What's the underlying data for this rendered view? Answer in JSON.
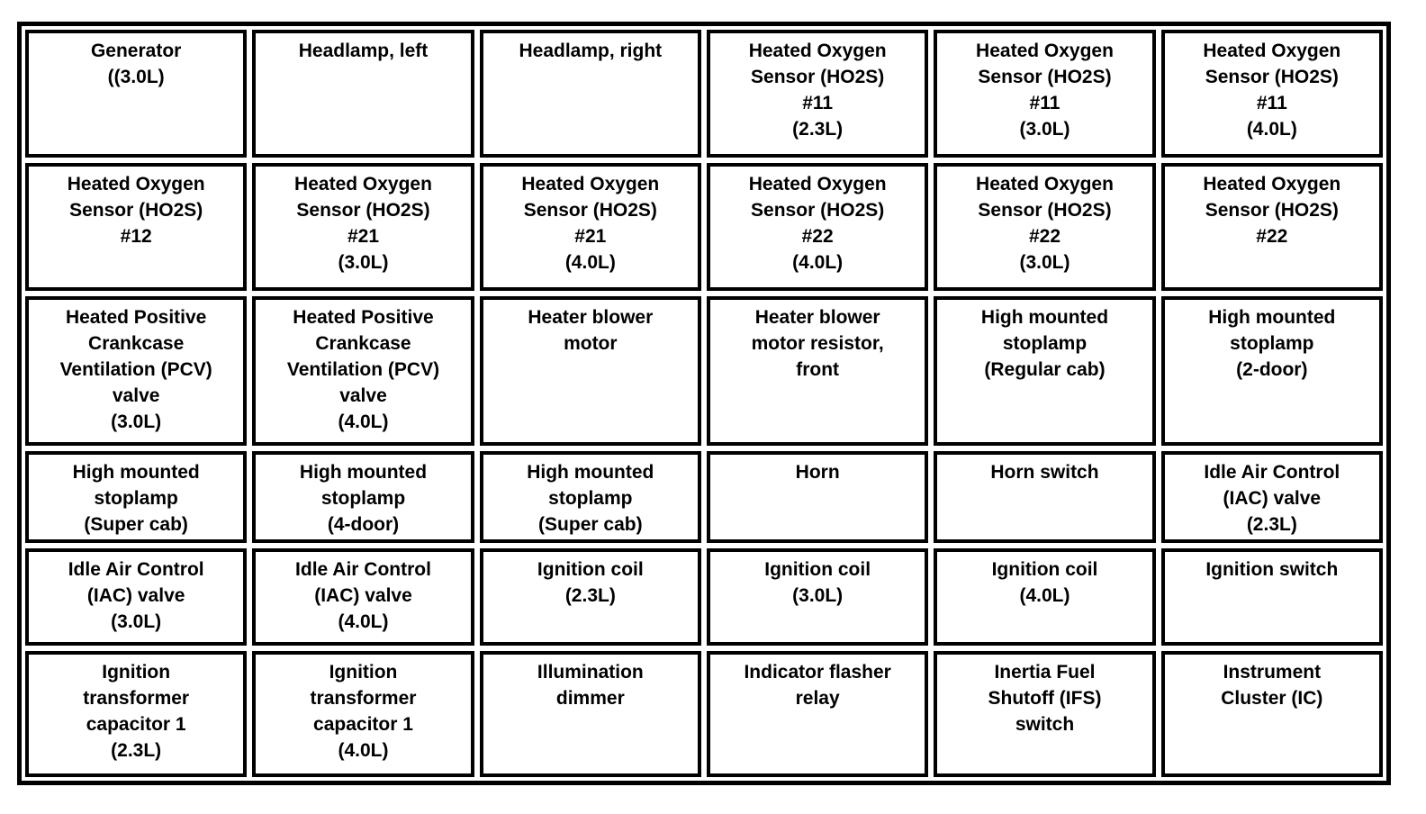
{
  "document": {
    "kind": "component-index-table",
    "columns": 6,
    "row_count": 6
  },
  "colors": {
    "background": "#ffffff",
    "border": "#000000",
    "text": "#000000"
  },
  "grid": {
    "rows": [
      {
        "cells": [
          {
            "text": "Generator\n((3.0L)"
          },
          {
            "text": "Headlamp, left"
          },
          {
            "text": "Headlamp, right"
          },
          {
            "text": "Heated Oxygen\nSensor (HO2S)\n#11\n(2.3L)"
          },
          {
            "text": "Heated Oxygen\nSensor (HO2S)\n#11\n(3.0L)"
          },
          {
            "text": "Heated Oxygen\nSensor (HO2S)\n#11\n(4.0L)"
          }
        ]
      },
      {
        "cells": [
          {
            "text": "Heated Oxygen\nSensor (HO2S)\n#12"
          },
          {
            "text": "Heated Oxygen\nSensor (HO2S)\n#21\n(3.0L)"
          },
          {
            "text": "Heated Oxygen\nSensor (HO2S)\n#21\n(4.0L)"
          },
          {
            "text": "Heated Oxygen\nSensor (HO2S)\n#22\n(4.0L)"
          },
          {
            "text": "Heated Oxygen\nSensor (HO2S)\n#22\n(3.0L)"
          },
          {
            "text": "Heated Oxygen\nSensor (HO2S)\n#22"
          }
        ]
      },
      {
        "cells": [
          {
            "text": "Heated Positive\nCrankcase\nVentilation (PCV)\nvalve\n(3.0L)"
          },
          {
            "text": "Heated Positive\nCrankcase\nVentilation (PCV)\nvalve\n(4.0L)"
          },
          {
            "text": "Heater blower\nmotor"
          },
          {
            "text": "Heater blower\nmotor resistor,\nfront"
          },
          {
            "text": "High mounted\nstoplamp\n(Regular cab)"
          },
          {
            "text": "High mounted\nstoplamp\n(2-door)"
          }
        ]
      },
      {
        "cells": [
          {
            "text": "High mounted\nstoplamp\n(Super cab)"
          },
          {
            "text": "High mounted\nstoplamp\n(4-door)"
          },
          {
            "text": "High mounted\nstoplamp\n(Super cab)"
          },
          {
            "text": "Horn"
          },
          {
            "text": "Horn switch"
          },
          {
            "text": "Idle Air Control\n(IAC) valve\n(2.3L)"
          }
        ]
      },
      {
        "cells": [
          {
            "text": "Idle Air Control\n(IAC) valve\n(3.0L)"
          },
          {
            "text": "Idle Air Control\n(IAC) valve\n(4.0L)"
          },
          {
            "text": "Ignition coil\n(2.3L)"
          },
          {
            "text": "Ignition coil\n(3.0L)"
          },
          {
            "text": "Ignition coil\n(4.0L)"
          },
          {
            "text": "Ignition switch"
          }
        ]
      },
      {
        "cells": [
          {
            "text": "Ignition\ntransformer\ncapacitor 1\n(2.3L)"
          },
          {
            "text": "Ignition\ntransformer\ncapacitor 1\n(4.0L)"
          },
          {
            "text": "Illumination\ndimmer"
          },
          {
            "text": "Indicator flasher\nrelay"
          },
          {
            "text": "Inertia Fuel\nShutoff (IFS)\nswitch"
          },
          {
            "text": "Instrument\nCluster (IC)"
          }
        ]
      }
    ]
  }
}
